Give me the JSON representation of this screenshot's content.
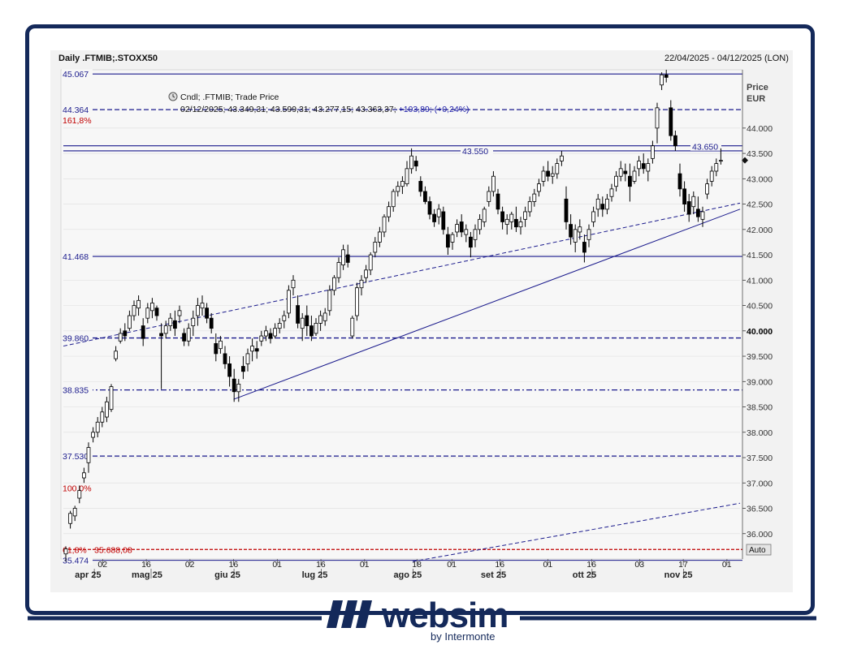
{
  "header": {
    "title": "Daily .FTMIB;.STOXX50",
    "date_range": "22/04/2025 - 04/12/2025 (LON)",
    "legend_name": "Cndl; .FTMIB; Trade Price",
    "legend_values": "02/12/2025; 43.349,31; 43.599,31; 43.277,15; 43.363,37;",
    "legend_change": "+103,89; (+0,24%)",
    "price_label": "Price",
    "currency_label": "EUR",
    "auto_label": "Auto"
  },
  "logo": {
    "brand": "websim",
    "sub": "by Intermonte"
  },
  "colors": {
    "navy": "#14295a",
    "line": "#1a1a8c",
    "red": "#d00000",
    "up": "#ffffff",
    "down": "#000000"
  },
  "chart_data": {
    "type": "candlestick",
    "title": "Daily .FTMIB;.STOXX50",
    "ylabel": "Price EUR",
    "ylim": [
      35500,
      45150
    ],
    "y_ticks": [
      "36.000",
      "36.500",
      "37.000",
      "37.500",
      "38.000",
      "38.500",
      "39.000",
      "39.500",
      "40.000",
      "40.500",
      "41.000",
      "41.500",
      "42.000",
      "42.500",
      "43.000",
      "43.500",
      "44.000"
    ],
    "x_day_ticks": [
      {
        "label": "02",
        "day": 9
      },
      {
        "label": "16",
        "day": 19
      },
      {
        "label": "02",
        "day": 29
      },
      {
        "label": "16",
        "day": 39
      },
      {
        "label": "01",
        "day": 49
      },
      {
        "label": "16",
        "day": 59
      },
      {
        "label": "01",
        "day": 69
      },
      {
        "label": "18",
        "day": 81
      },
      {
        "label": "01",
        "day": 89
      },
      {
        "label": "16",
        "day": 100
      },
      {
        "label": "01",
        "day": 111
      },
      {
        "label": "16",
        "day": 121
      },
      {
        "label": "03",
        "day": 132
      },
      {
        "label": "17",
        "day": 142
      },
      {
        "label": "01",
        "day": 152
      }
    ],
    "x_month_ticks": [
      {
        "label": "apr 25",
        "day": 3
      },
      {
        "label": "mag 25",
        "day": 16
      },
      {
        "label": "giu 25",
        "day": 35
      },
      {
        "label": "lug 25",
        "day": 55
      },
      {
        "label": "ago 25",
        "day": 76
      },
      {
        "label": "set 25",
        "day": 96
      },
      {
        "label": "ott 25",
        "day": 117
      },
      {
        "label": "nov 25",
        "day": 138
      }
    ],
    "levels": [
      {
        "label": "45.067",
        "value": 45067,
        "style": "solid"
      },
      {
        "label": "44.364",
        "value": 44364,
        "style": "dash",
        "pct": "161,8%"
      },
      {
        "label": "43.550",
        "value": 43550,
        "style": "solid"
      },
      {
        "label": "43.650",
        "value": 43650,
        "style": "solid"
      },
      {
        "label": "41.468",
        "value": 41468,
        "style": "solid"
      },
      {
        "label": "39.860",
        "value": 39860,
        "style": "dash"
      },
      {
        "label": "38.835",
        "value": 38835,
        "style": "dashdot"
      },
      {
        "label": "37.530",
        "value": 37530,
        "style": "dash"
      },
      {
        "label": "",
        "value": 36900,
        "style": "none",
        "pct": "100,0%"
      },
      {
        "label": "35.688,08",
        "value": 35688,
        "style": "reddash",
        "pct": "61,8%"
      },
      {
        "label": "35.474",
        "value": 35474,
        "style": "solid"
      }
    ],
    "trendlines": [
      {
        "from": [
          39,
          38650
        ],
        "to": [
          155,
          42400
        ],
        "style": "solid"
      },
      {
        "from": [
          0,
          39700
        ],
        "to": [
          155,
          42520
        ],
        "style": "dash"
      },
      {
        "from": [
          80,
          35450
        ],
        "to": [
          155,
          36600
        ],
        "style": "dash"
      }
    ],
    "last_price": "43.363,37",
    "candles": [
      [
        0,
        35600,
        35750,
        35450,
        35700
      ],
      [
        1,
        36200,
        36450,
        36100,
        36400
      ],
      [
        2,
        36350,
        36550,
        36250,
        36500
      ],
      [
        3,
        36700,
        36950,
        36600,
        36850
      ],
      [
        4,
        37100,
        37300,
        37000,
        37200
      ],
      [
        5,
        37400,
        37800,
        37200,
        37700
      ],
      [
        6,
        37900,
        38100,
        37800,
        38000
      ],
      [
        7,
        38000,
        38300,
        37900,
        38200
      ],
      [
        8,
        38200,
        38500,
        38100,
        38400
      ],
      [
        9,
        38300,
        38700,
        38200,
        38600
      ],
      [
        10,
        38450,
        38950,
        38400,
        38900
      ],
      [
        11,
        39450,
        39700,
        39400,
        39600
      ],
      [
        12,
        39800,
        40050,
        39750,
        39950
      ],
      [
        13,
        40000,
        40150,
        39800,
        39900
      ],
      [
        14,
        40050,
        40400,
        40000,
        40300
      ],
      [
        15,
        40300,
        40600,
        40200,
        40500
      ],
      [
        16,
        40450,
        40700,
        40300,
        40600
      ],
      [
        17,
        40100,
        40250,
        39700,
        39850
      ],
      [
        18,
        40250,
        40550,
        40150,
        40450
      ],
      [
        19,
        40400,
        40650,
        40250,
        40550
      ],
      [
        20,
        40450,
        40500,
        40200,
        40300
      ],
      [
        21,
        39950,
        40150,
        38850,
        39900
      ],
      [
        22,
        39950,
        40200,
        39850,
        40100
      ],
      [
        23,
        40100,
        40350,
        40000,
        40250
      ],
      [
        24,
        40200,
        40400,
        39900,
        40050
      ],
      [
        25,
        40300,
        40500,
        40150,
        40400
      ],
      [
        26,
        39950,
        40050,
        39700,
        39800
      ],
      [
        27,
        39800,
        40150,
        39700,
        40050
      ],
      [
        28,
        40100,
        40400,
        39900,
        40250
      ],
      [
        29,
        40300,
        40650,
        40100,
        40500
      ],
      [
        30,
        40450,
        40700,
        40300,
        40550
      ],
      [
        31,
        40450,
        40550,
        40150,
        40250
      ],
      [
        32,
        40250,
        40350,
        39950,
        40050
      ],
      [
        33,
        39750,
        39950,
        39400,
        39550
      ],
      [
        34,
        39650,
        39900,
        39550,
        39800
      ],
      [
        35,
        39550,
        39700,
        39250,
        39350
      ],
      [
        36,
        39350,
        39500,
        38900,
        39100
      ],
      [
        37,
        39050,
        39250,
        38600,
        38800
      ],
      [
        38,
        38800,
        39050,
        38600,
        38950
      ],
      [
        39,
        39300,
        39500,
        39050,
        39200
      ],
      [
        40,
        39350,
        39650,
        39200,
        39550
      ],
      [
        41,
        39600,
        39850,
        39400,
        39700
      ],
      [
        42,
        39650,
        39800,
        39450,
        39600
      ],
      [
        43,
        39800,
        40000,
        39700,
        39900
      ],
      [
        44,
        39900,
        40100,
        39800,
        40000
      ],
      [
        45,
        39950,
        40050,
        39750,
        39850
      ],
      [
        46,
        39900,
        40150,
        39850,
        40050
      ],
      [
        47,
        40050,
        40250,
        39950,
        40150
      ],
      [
        48,
        40200,
        40400,
        40050,
        40300
      ],
      [
        49,
        40350,
        40900,
        40250,
        40800
      ],
      [
        50,
        40850,
        41100,
        40700,
        41000
      ],
      [
        51,
        40500,
        40700,
        40050,
        40150
      ],
      [
        52,
        40050,
        40350,
        39800,
        40250
      ],
      [
        53,
        40300,
        40500,
        39900,
        40100
      ],
      [
        54,
        40100,
        40300,
        39800,
        39900
      ],
      [
        55,
        39950,
        40250,
        39900,
        40150
      ],
      [
        56,
        40150,
        40400,
        40000,
        40300
      ],
      [
        57,
        40200,
        40450,
        40100,
        40350
      ],
      [
        58,
        40400,
        40900,
        40300,
        40800
      ],
      [
        59,
        40800,
        41100,
        40700,
        41050
      ],
      [
        60,
        41050,
        41450,
        40950,
        41350
      ],
      [
        61,
        41300,
        41700,
        41200,
        41600
      ],
      [
        62,
        41500,
        41700,
        41250,
        41350
      ],
      [
        63,
        39900,
        40300,
        39850,
        40250
      ],
      [
        64,
        40300,
        40950,
        40200,
        40850
      ],
      [
        65,
        40850,
        41100,
        40700,
        41000
      ],
      [
        66,
        41050,
        41300,
        40950,
        41200
      ],
      [
        67,
        41200,
        41550,
        41100,
        41500
      ],
      [
        68,
        41550,
        41850,
        41450,
        41750
      ],
      [
        69,
        41750,
        42050,
        41650,
        41950
      ],
      [
        70,
        41950,
        42300,
        41850,
        42250
      ],
      [
        71,
        42250,
        42550,
        42150,
        42450
      ],
      [
        72,
        42450,
        42800,
        42350,
        42750
      ],
      [
        73,
        42750,
        42950,
        42650,
        42850
      ],
      [
        74,
        42850,
        43050,
        42700,
        42950
      ],
      [
        75,
        42900,
        43350,
        42850,
        43200
      ],
      [
        76,
        43200,
        43600,
        43100,
        43450
      ],
      [
        77,
        43350,
        43450,
        43150,
        43250
      ],
      [
        78,
        42950,
        43050,
        42650,
        42750
      ],
      [
        79,
        42750,
        42850,
        42500,
        42550
      ],
      [
        80,
        42550,
        42650,
        42200,
        42300
      ],
      [
        81,
        42300,
        42400,
        42050,
        42150
      ],
      [
        82,
        42250,
        42500,
        42100,
        42400
      ],
      [
        83,
        42350,
        42450,
        41900,
        42000
      ],
      [
        84,
        41900,
        42050,
        41500,
        41650
      ],
      [
        85,
        41750,
        41950,
        41600,
        41900
      ],
      [
        86,
        41950,
        42200,
        41850,
        42100
      ],
      [
        87,
        42150,
        42300,
        41850,
        41950
      ],
      [
        88,
        41900,
        42100,
        41750,
        42000
      ],
      [
        89,
        41850,
        41950,
        41450,
        41650
      ],
      [
        90,
        41800,
        42100,
        41650,
        42000
      ],
      [
        91,
        42000,
        42300,
        41900,
        42200
      ],
      [
        92,
        42150,
        42450,
        42050,
        42400
      ],
      [
        93,
        42550,
        42850,
        42450,
        42750
      ],
      [
        94,
        42750,
        43150,
        42650,
        43050
      ],
      [
        95,
        42700,
        42800,
        42300,
        42400
      ],
      [
        96,
        42350,
        42450,
        42000,
        42150
      ],
      [
        97,
        42100,
        42300,
        41900,
        42200
      ],
      [
        98,
        42150,
        42350,
        42000,
        42300
      ],
      [
        99,
        42200,
        42450,
        41950,
        42050
      ],
      [
        100,
        42050,
        42250,
        41900,
        42150
      ],
      [
        101,
        42200,
        42450,
        42050,
        42350
      ],
      [
        102,
        42350,
        42650,
        42250,
        42550
      ],
      [
        103,
        42550,
        42800,
        42450,
        42700
      ],
      [
        104,
        42750,
        43000,
        42650,
        42900
      ],
      [
        105,
        42950,
        43250,
        42850,
        43150
      ],
      [
        106,
        43150,
        43350,
        42950,
        43050
      ],
      [
        107,
        43050,
        43250,
        42900,
        43100
      ],
      [
        108,
        43100,
        43400,
        43000,
        43300
      ],
      [
        109,
        43350,
        43550,
        43250,
        43450
      ],
      [
        110,
        42600,
        42850,
        42000,
        42150
      ],
      [
        111,
        42100,
        42300,
        41700,
        41850
      ],
      [
        112,
        41750,
        42100,
        41550,
        42000
      ],
      [
        113,
        41950,
        42200,
        41800,
        42050
      ],
      [
        114,
        41750,
        41900,
        41350,
        41550
      ],
      [
        115,
        41800,
        42100,
        41650,
        42000
      ],
      [
        116,
        42150,
        42450,
        42050,
        42350
      ],
      [
        117,
        42400,
        42700,
        42250,
        42600
      ],
      [
        118,
        42500,
        42650,
        42250,
        42400
      ],
      [
        119,
        42400,
        42700,
        42300,
        42600
      ],
      [
        120,
        42650,
        42900,
        42550,
        42800
      ],
      [
        121,
        42850,
        43150,
        42750,
        43050
      ],
      [
        122,
        43050,
        43350,
        42950,
        43200
      ],
      [
        123,
        43150,
        43300,
        42950,
        43100
      ],
      [
        124,
        43050,
        43300,
        42550,
        42850
      ],
      [
        125,
        42950,
        43250,
        42900,
        43150
      ],
      [
        126,
        43200,
        43450,
        43050,
        43350
      ],
      [
        127,
        43300,
        43500,
        43100,
        43200
      ],
      [
        128,
        43150,
        43400,
        42950,
        43300
      ],
      [
        129,
        43400,
        43750,
        43300,
        43650
      ],
      [
        130,
        44000,
        44500,
        43700,
        44400
      ],
      [
        131,
        44850,
        45100,
        44750,
        45050
      ],
      [
        132,
        45050,
        45150,
        44900,
        45000
      ],
      [
        133,
        44400,
        44550,
        43750,
        43850
      ],
      [
        134,
        43850,
        43950,
        43550,
        43650
      ],
      [
        135,
        43100,
        43300,
        42650,
        42800
      ],
      [
        136,
        42800,
        42950,
        42350,
        42500
      ],
      [
        137,
        42550,
        42700,
        42150,
        42300
      ],
      [
        138,
        42450,
        42750,
        42300,
        42650
      ],
      [
        139,
        42400,
        42650,
        42150,
        42250
      ],
      [
        140,
        42200,
        42450,
        42050,
        42350
      ],
      [
        141,
        42700,
        43000,
        42600,
        42900
      ],
      [
        142,
        42950,
        43250,
        42850,
        43150
      ],
      [
        143,
        43150,
        43400,
        43050,
        43300
      ],
      [
        144,
        43350,
        43600,
        43280,
        43363
      ]
    ]
  }
}
